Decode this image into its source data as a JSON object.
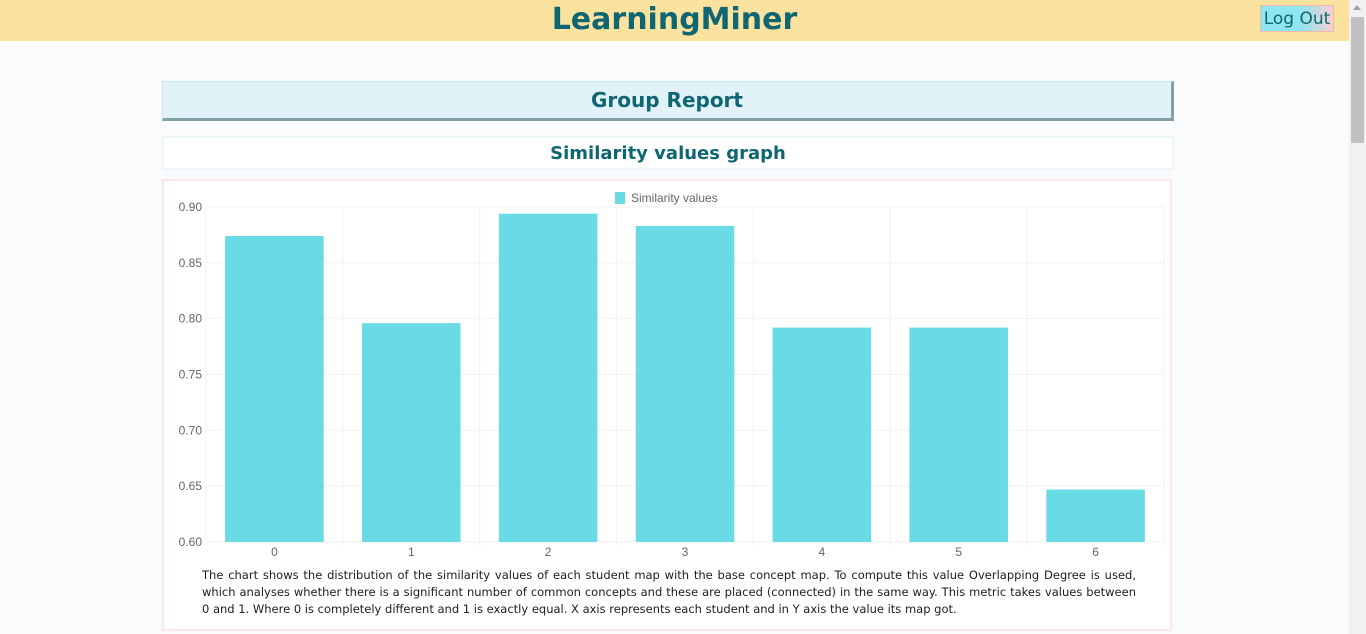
{
  "app": {
    "title": "LearningMiner",
    "logout_label": "Log Out"
  },
  "report": {
    "title": "Group Report",
    "section_title": "Similarity values graph",
    "description": "The chart shows the distribution of the similarity values of each student map with the base concept map. To compute this value Overlapping Degree is used, which analyses whether there is a significant number of common concepts and these are placed (connected) in the same way. This metric takes values between 0 and 1. Where 0 is completely different and 1 is exactly equal. X axis represents each student and in Y axis the value its map got."
  },
  "colors": {
    "accent": "#0f6673",
    "bar": "#69dbe4",
    "header_bg": "#fce29f"
  },
  "chart_data": {
    "type": "bar",
    "categories": [
      "0",
      "1",
      "2",
      "3",
      "4",
      "5",
      "6"
    ],
    "series": [
      {
        "name": "Similarity values",
        "values": [
          0.874,
          0.796,
          0.894,
          0.883,
          0.792,
          0.792,
          0.647
        ]
      }
    ],
    "ylim": [
      0.6,
      0.9
    ],
    "yticks": [
      "0.90",
      "0.85",
      "0.80",
      "0.75",
      "0.70",
      "0.65",
      "0.60"
    ],
    "legend_position": "top-center",
    "grid": true
  }
}
